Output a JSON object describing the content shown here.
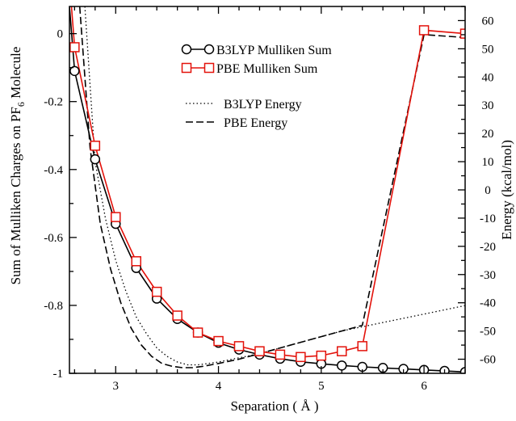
{
  "chart_data": {
    "type": "line",
    "xlabel": "Separation ( Å )",
    "ylabel": "Sum of Mulliken Charges on PF",
    "ylabel_subscript": "6",
    "ylabel_suffix": "Molecule",
    "y2label": "Energy (kcal/mol)",
    "xlim": [
      2.55,
      6.4
    ],
    "ylim": [
      -1.0,
      0.08
    ],
    "y2lim": [
      -65,
      65
    ],
    "x_ticks": [
      3,
      4,
      5,
      6
    ],
    "x_tick_labels": [
      "3",
      "4",
      "5",
      "6"
    ],
    "y_ticks": [
      0,
      -0.2,
      -0.4,
      -0.6,
      -0.8,
      -1
    ],
    "y_tick_labels": [
      "0",
      "-0.2",
      "-0.4",
      "-0.6",
      "-0.8",
      "-1"
    ],
    "y2_ticks": [
      60,
      50,
      40,
      30,
      20,
      10,
      0,
      -10,
      -20,
      -30,
      -40,
      -50,
      -60
    ],
    "y2_tick_labels": [
      "60",
      "50",
      "40",
      "30",
      "20",
      "10",
      "0",
      "-10",
      "-20",
      "-30",
      "-40",
      "-50",
      "-60"
    ],
    "grid": false,
    "legend_position": "top-right",
    "series": [
      {
        "name": "B3LYP Mulliken Sum",
        "axis": "left",
        "color": "#000000",
        "marker": "circle",
        "style": "solid",
        "x": [
          2.55,
          2.6,
          2.8,
          3.0,
          3.2,
          3.4,
          3.6,
          3.8,
          4.0,
          4.2,
          4.4,
          4.6,
          4.8,
          5.0,
          5.2,
          5.4,
          5.6,
          5.8,
          6.0,
          6.2,
          6.4
        ],
        "y": [
          0.08,
          -0.11,
          -0.37,
          -0.56,
          -0.69,
          -0.78,
          -0.84,
          -0.88,
          -0.91,
          -0.93,
          -0.945,
          -0.957,
          -0.966,
          -0.972,
          -0.977,
          -0.981,
          -0.984,
          -0.987,
          -0.99,
          -0.993,
          -0.996
        ]
      },
      {
        "name": "PBE Mulliken Sum",
        "axis": "left",
        "color": "#e3120b",
        "marker": "square",
        "style": "solid",
        "x": [
          2.57,
          2.6,
          2.8,
          3.0,
          3.2,
          3.4,
          3.6,
          3.8,
          4.0,
          4.2,
          4.4,
          4.6,
          4.8,
          5.0,
          5.2,
          5.4,
          6.0,
          6.4
        ],
        "y": [
          0.08,
          -0.04,
          -0.33,
          -0.54,
          -0.67,
          -0.76,
          -0.83,
          -0.88,
          -0.905,
          -0.92,
          -0.935,
          -0.945,
          -0.952,
          -0.948,
          -0.935,
          -0.92,
          0.01,
          0.0
        ]
      },
      {
        "name": "B3LYP Energy",
        "axis": "right",
        "color": "#000000",
        "marker": "none",
        "style": "dotted",
        "x": [
          2.7,
          2.8,
          2.9,
          3.0,
          3.1,
          3.2,
          3.3,
          3.4,
          3.5,
          3.6,
          3.7,
          3.8,
          3.9,
          4.0,
          4.2,
          4.4,
          4.6,
          4.8,
          5.0,
          5.2,
          5.4,
          5.6,
          5.8,
          6.0,
          6.2,
          6.4
        ],
        "y": [
          65,
          10,
          -10,
          -25,
          -36,
          -45,
          -51,
          -56,
          -59,
          -61,
          -62,
          -62,
          -61.5,
          -61,
          -59.5,
          -58,
          -56,
          -54,
          -52,
          -50,
          -48.5,
          -47,
          -45.5,
          -44,
          -42.5,
          -41
        ]
      },
      {
        "name": "PBE Energy",
        "axis": "right",
        "color": "#000000",
        "marker": "none",
        "style": "dashed",
        "x": [
          2.65,
          2.75,
          2.85,
          2.95,
          3.05,
          3.15,
          3.25,
          3.35,
          3.45,
          3.55,
          3.65,
          3.75,
          3.85,
          4.0,
          4.2,
          4.4,
          4.6,
          4.8,
          5.0,
          5.2,
          5.4,
          6.0,
          6.4
        ],
        "y": [
          65,
          15,
          -12,
          -28,
          -40,
          -49,
          -55,
          -59,
          -61.5,
          -62.5,
          -63,
          -63,
          -62.5,
          -61.5,
          -60,
          -58,
          -56,
          -54,
          -52,
          -50,
          -48,
          55,
          54
        ]
      }
    ]
  }
}
